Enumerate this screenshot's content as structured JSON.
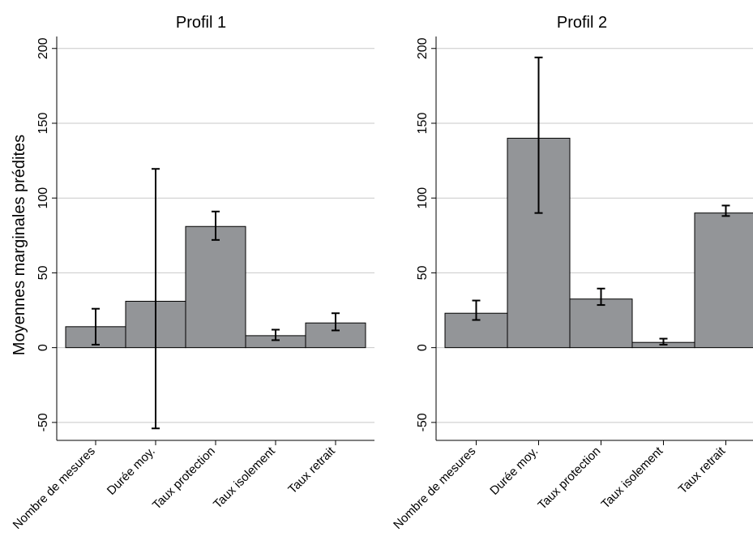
{
  "ylabel": "Moyennes marginales prédites",
  "chart_data": [
    {
      "type": "bar",
      "title": "Profil 1",
      "categories": [
        "Nombre de mesures",
        "Durée moy.",
        "Taux protection",
        "Taux isolement",
        "Taux retrait"
      ],
      "values": [
        14,
        31,
        81,
        8,
        16.5
      ],
      "ci_low": [
        2,
        -54,
        72,
        5,
        11.5
      ],
      "ci_high": [
        26,
        119.5,
        91,
        12,
        23
      ],
      "ylim": [
        -62,
        208
      ],
      "yticks": [
        -50,
        0,
        50,
        100,
        150,
        200
      ],
      "yticklabels": [
        "-50",
        "0",
        "50",
        "100",
        "150",
        "200"
      ],
      "grid": true
    },
    {
      "type": "bar",
      "title": "Profil 2",
      "categories": [
        "Nombre de mesures",
        "Durée moy.",
        "Taux protection",
        "Taux isolement",
        "Taux retrait"
      ],
      "values": [
        23,
        140,
        32.5,
        3.5,
        90
      ],
      "ci_low": [
        18.5,
        90,
        28.5,
        2,
        88
      ],
      "ci_high": [
        31.5,
        194,
        39.5,
        6,
        95
      ],
      "ylim": [
        -62,
        208
      ],
      "yticks": [
        -50,
        0,
        50,
        100,
        150,
        200
      ],
      "yticklabels": [
        "-50",
        "0",
        "50",
        "100",
        "150",
        "200"
      ],
      "grid": true
    }
  ]
}
